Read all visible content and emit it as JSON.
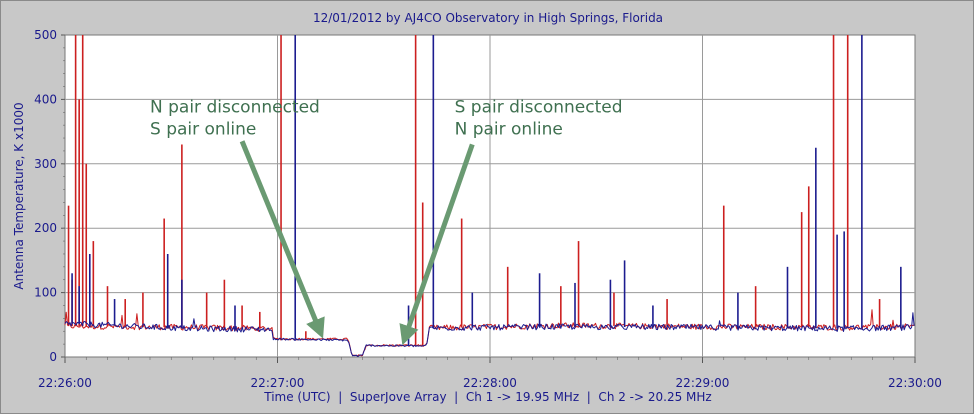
{
  "chart_data": {
    "type": "line",
    "title": "12/01/2012  by  AJ4CO Observatory  in  High Springs, Florida",
    "ylabel": "Antenna Temperature, K x1000",
    "xlabel": "Time (UTC)  |  SuperJove Array  |  Ch 1 -> 19.95 MHz  |  Ch 2 -> 20.25 MHz",
    "ylim": [
      0,
      500
    ],
    "xlim": [
      "22:26:00",
      "22:30:00"
    ],
    "yticks": [
      "0",
      "100",
      "200",
      "300",
      "400",
      "500"
    ],
    "xticks": [
      "22:26:00",
      "22:27:00",
      "22:28:00",
      "22:29:00",
      "22:30:00"
    ],
    "grid": true,
    "legend": "none",
    "series": [
      {
        "color": "#cc1f1f",
        "baseline": [
          {
            "x": "22:26:00",
            "y": 48
          },
          {
            "x": "22:26:36",
            "y": 46
          },
          {
            "x": "22:26:58",
            "y": 44
          },
          {
            "x": "22:26:59",
            "y": 28
          },
          {
            "x": "22:27:20",
            "y": 28
          },
          {
            "x": "22:27:21",
            "y": 2
          },
          {
            "x": "22:27:24",
            "y": 2
          },
          {
            "x": "22:27:25",
            "y": 18
          },
          {
            "x": "22:27:42",
            "y": 18
          },
          {
            "x": "22:27:43",
            "y": 45
          },
          {
            "x": "22:28:20",
            "y": 49
          },
          {
            "x": "22:29:00",
            "y": 47
          },
          {
            "x": "22:29:40",
            "y": 46
          },
          {
            "x": "22:30:00",
            "y": 47
          }
        ],
        "spikes": [
          {
            "x": "22:26:01",
            "y": 235
          },
          {
            "x": "22:26:02",
            "y": 120
          },
          {
            "x": "22:26:03",
            "y": 500
          },
          {
            "x": "22:26:04",
            "y": 400
          },
          {
            "x": "22:26:05",
            "y": 500
          },
          {
            "x": "22:26:06",
            "y": 300
          },
          {
            "x": "22:26:08",
            "y": 180
          },
          {
            "x": "22:26:12",
            "y": 110
          },
          {
            "x": "22:26:17",
            "y": 90
          },
          {
            "x": "22:26:22",
            "y": 100
          },
          {
            "x": "22:26:28",
            "y": 215
          },
          {
            "x": "22:26:33",
            "y": 330
          },
          {
            "x": "22:26:40",
            "y": 100
          },
          {
            "x": "22:26:45",
            "y": 120
          },
          {
            "x": "22:26:50",
            "y": 80
          },
          {
            "x": "22:26:55",
            "y": 70
          },
          {
            "x": "22:27:01",
            "y": 500
          },
          {
            "x": "22:27:08",
            "y": 40
          },
          {
            "x": "22:27:39",
            "y": 500
          },
          {
            "x": "22:27:41",
            "y": 240
          },
          {
            "x": "22:27:52",
            "y": 215
          },
          {
            "x": "22:28:05",
            "y": 140
          },
          {
            "x": "22:28:20",
            "y": 110
          },
          {
            "x": "22:28:25",
            "y": 180
          },
          {
            "x": "22:28:35",
            "y": 100
          },
          {
            "x": "22:28:50",
            "y": 90
          },
          {
            "x": "22:29:06",
            "y": 235
          },
          {
            "x": "22:29:15",
            "y": 110
          },
          {
            "x": "22:29:28",
            "y": 225
          },
          {
            "x": "22:29:30",
            "y": 265
          },
          {
            "x": "22:29:37",
            "y": 500
          },
          {
            "x": "22:29:41",
            "y": 500
          },
          {
            "x": "22:29:50",
            "y": 90
          }
        ]
      },
      {
        "color": "#1c1c8f",
        "baseline": [
          {
            "x": "22:26:00",
            "y": 52
          },
          {
            "x": "22:26:36",
            "y": 44
          },
          {
            "x": "22:26:58",
            "y": 43
          },
          {
            "x": "22:26:59",
            "y": 28
          },
          {
            "x": "22:27:20",
            "y": 26
          },
          {
            "x": "22:27:21",
            "y": 2
          },
          {
            "x": "22:27:24",
            "y": 2
          },
          {
            "x": "22:27:25",
            "y": 18
          },
          {
            "x": "22:27:42",
            "y": 17
          },
          {
            "x": "22:27:43",
            "y": 45
          },
          {
            "x": "22:28:20",
            "y": 47
          },
          {
            "x": "22:29:00",
            "y": 46
          },
          {
            "x": "22:29:40",
            "y": 44
          },
          {
            "x": "22:30:00",
            "y": 46
          }
        ],
        "spikes": [
          {
            "x": "22:26:02",
            "y": 130
          },
          {
            "x": "22:26:04",
            "y": 110
          },
          {
            "x": "22:26:07",
            "y": 160
          },
          {
            "x": "22:26:14",
            "y": 90
          },
          {
            "x": "22:26:29",
            "y": 160
          },
          {
            "x": "22:26:33",
            "y": 120
          },
          {
            "x": "22:26:48",
            "y": 80
          },
          {
            "x": "22:27:05",
            "y": 500
          },
          {
            "x": "22:27:37",
            "y": 80
          },
          {
            "x": "22:27:44",
            "y": 500
          },
          {
            "x": "22:27:55",
            "y": 100
          },
          {
            "x": "22:28:14",
            "y": 130
          },
          {
            "x": "22:28:24",
            "y": 115
          },
          {
            "x": "22:28:34",
            "y": 120
          },
          {
            "x": "22:28:38",
            "y": 150
          },
          {
            "x": "22:28:46",
            "y": 80
          },
          {
            "x": "22:29:10",
            "y": 100
          },
          {
            "x": "22:29:24",
            "y": 140
          },
          {
            "x": "22:29:32",
            "y": 325
          },
          {
            "x": "22:29:38",
            "y": 190
          },
          {
            "x": "22:29:40",
            "y": 195
          },
          {
            "x": "22:29:45",
            "y": 500
          },
          {
            "x": "22:29:56",
            "y": 140
          }
        ]
      }
    ],
    "annotations": [
      {
        "lines": [
          "N pair disconnected",
          "S pair online"
        ],
        "text_at": {
          "x": "22:26:24",
          "y": 380
        },
        "arrow_from": {
          "x": "22:26:50",
          "y": 335
        },
        "arrow_to": {
          "x": "22:27:12",
          "y": 40
        }
      },
      {
        "lines": [
          "S pair disconnected",
          "N pair online"
        ],
        "text_at": {
          "x": "22:27:50",
          "y": 380
        },
        "arrow_from": {
          "x": "22:27:55",
          "y": 330
        },
        "arrow_to": {
          "x": "22:27:36",
          "y": 30
        }
      }
    ]
  }
}
